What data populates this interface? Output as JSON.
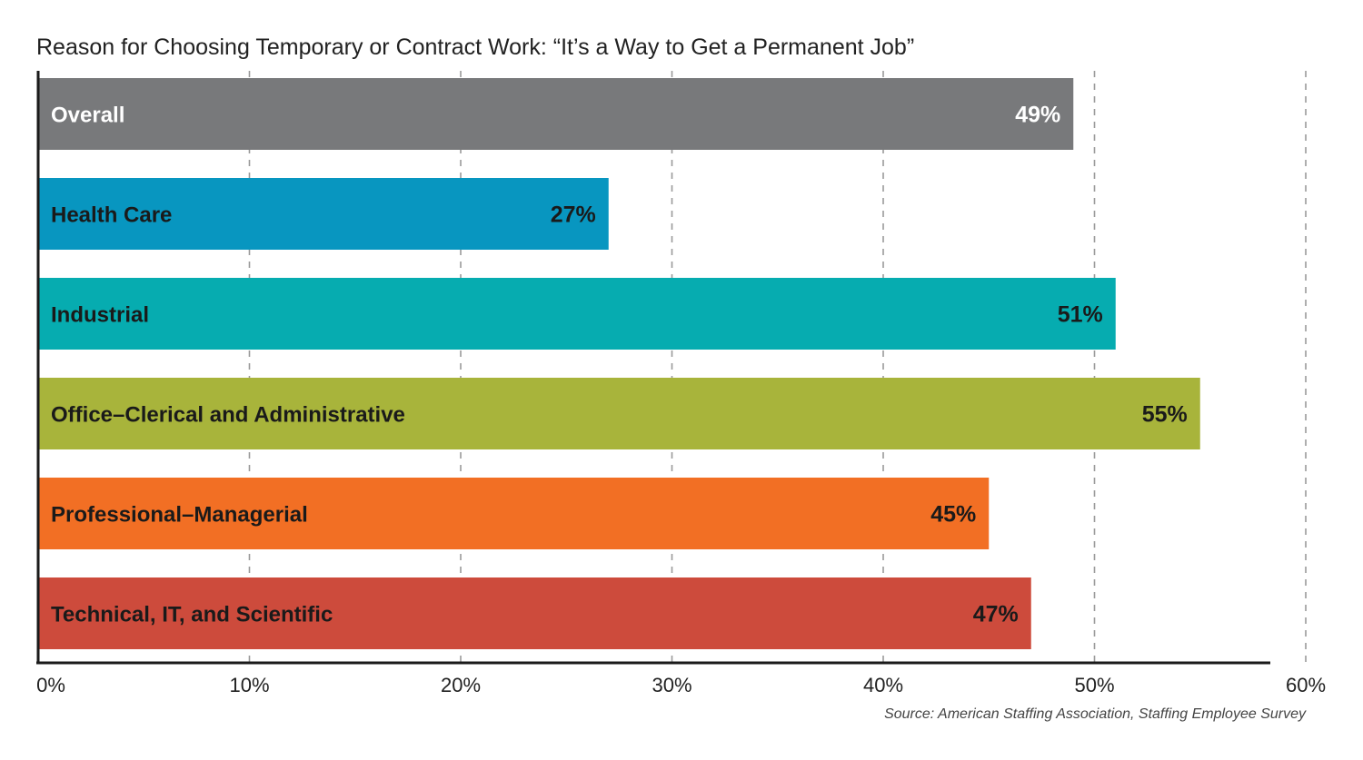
{
  "chart_data": {
    "type": "bar",
    "orientation": "horizontal",
    "title": "Reason for Choosing Temporary or Contract Work: “It’s a Way to Get a Permanent Job”",
    "categories": [
      "Overall",
      "Health Care",
      "Industrial",
      "Office–Clerical and Administrative",
      "Professional–Managerial",
      "Technical, IT, and Scientific"
    ],
    "values": [
      49,
      27,
      51,
      55,
      45,
      47
    ],
    "value_labels": [
      "49%",
      "27%",
      "51%",
      "55%",
      "45%",
      "47%"
    ],
    "colors": [
      "#78797b",
      "#0896c0",
      "#06acb0",
      "#a8b43b",
      "#f26f24",
      "#cd4b3c"
    ],
    "category_label_colors": [
      "#ffffff",
      "#1a1a1a",
      "#1a1a1a",
      "#1a1a1a",
      "#1a1a1a",
      "#1a1a1a"
    ],
    "value_label_colors": [
      "#ffffff",
      "#1a1a1a",
      "#1a1a1a",
      "#1a1a1a",
      "#1a1a1a",
      "#1a1a1a"
    ],
    "xlim": [
      0,
      60
    ],
    "xticks": [
      0,
      10,
      20,
      30,
      40,
      50,
      60
    ],
    "xtick_labels": [
      "0%",
      "10%",
      "20%",
      "30%",
      "40%",
      "50%",
      "60%"
    ],
    "grid": "vertical dashed",
    "legend": "none",
    "source": "Source: American Staffing Association, Staffing Employee Survey"
  }
}
